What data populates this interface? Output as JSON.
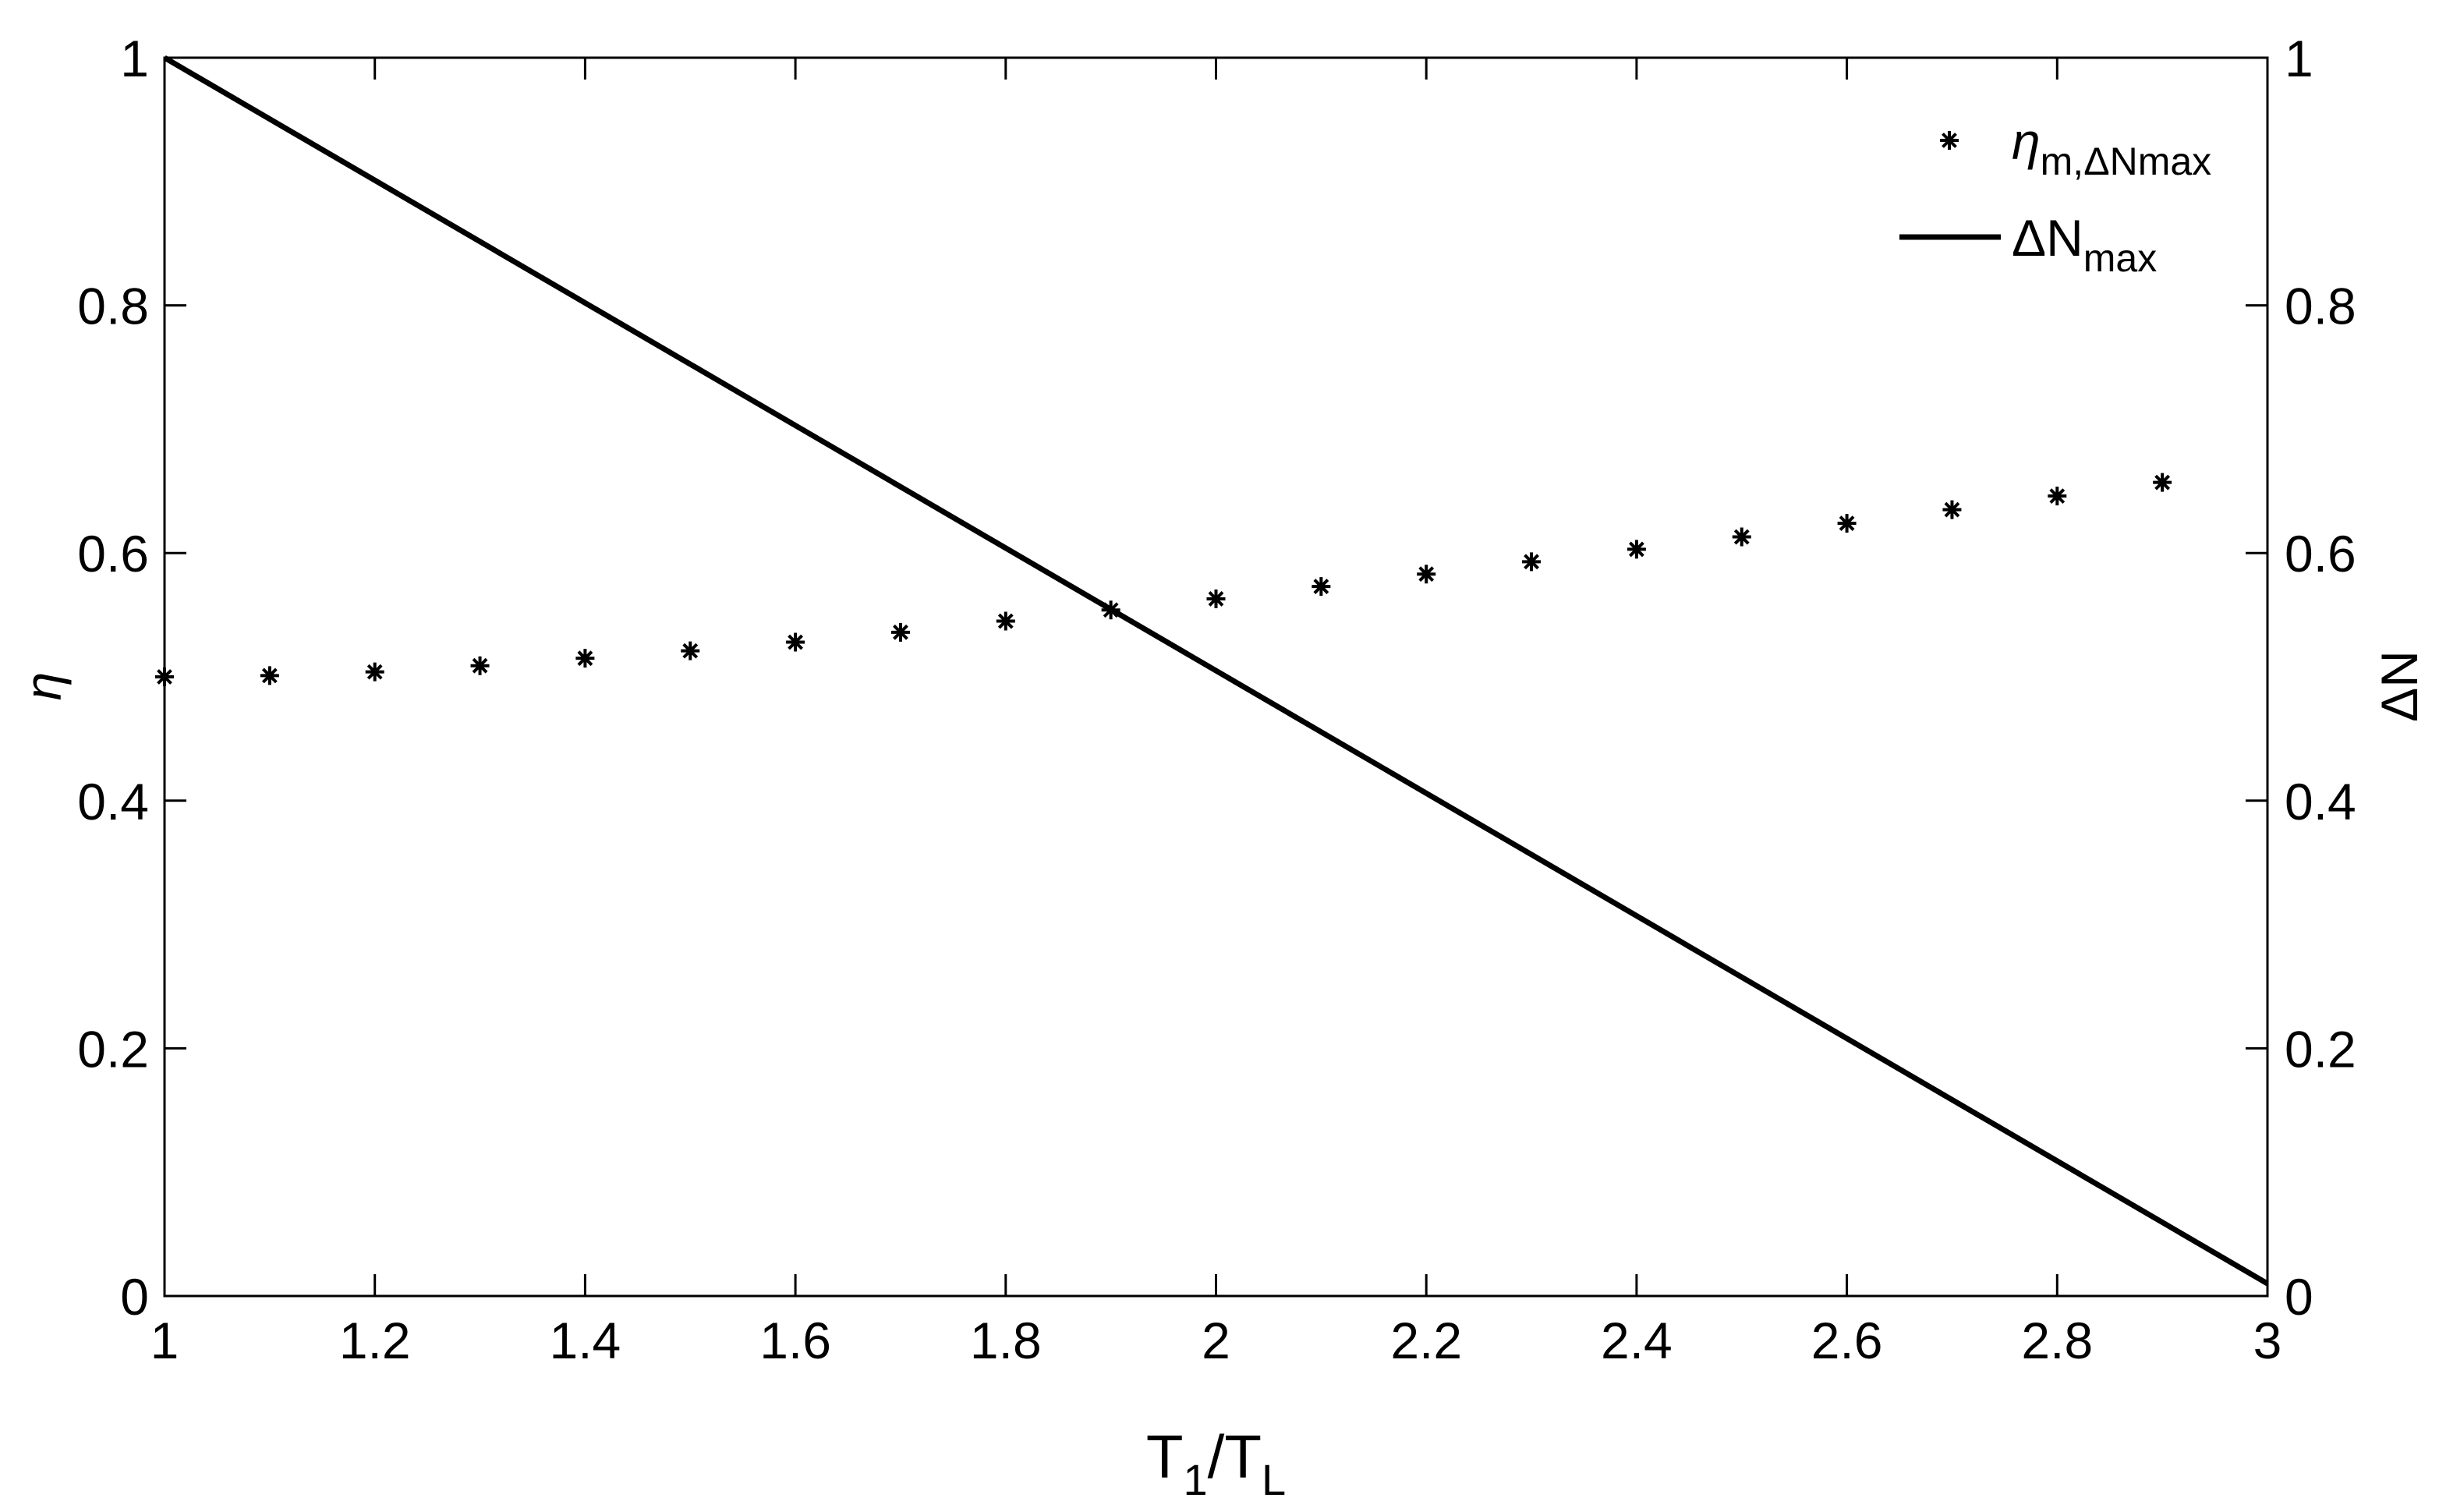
{
  "chart_data": {
    "type": "scatter-line",
    "x_label": [
      "T",
      "1",
      "/T",
      "L"
    ],
    "y_label": "η",
    "y2_label": "ΔN",
    "xlim": [
      1,
      3
    ],
    "xticks": [
      1,
      1.2,
      1.4,
      1.6,
      1.8,
      2,
      2.2,
      2.4,
      2.6,
      2.8,
      3
    ],
    "ylim": [
      0,
      1
    ],
    "yticks": [
      0,
      0.2,
      0.4,
      0.6,
      0.8,
      1
    ],
    "y2lim": [
      0,
      1
    ],
    "y2ticks": [
      0,
      0.2,
      0.4,
      0.6,
      0.8,
      1
    ],
    "series": [
      {
        "name": [
          "η",
          "m,ΔNmax"
        ],
        "color": "#000000",
        "marker": "asterisk",
        "axis": "y",
        "x": [
          1,
          1.1,
          1.2,
          1.3,
          1.4,
          1.5,
          1.6,
          1.7,
          1.8,
          1.9,
          2,
          2.1,
          2.2,
          2.3,
          2.4,
          2.5,
          2.6,
          2.7,
          2.8,
          2.9
        ],
        "values": [
          0.5,
          0.501,
          0.504,
          0.509,
          0.515,
          0.521,
          0.528,
          0.536,
          0.545,
          0.554,
          0.563,
          0.573,
          0.583,
          0.593,
          0.603,
          0.613,
          0.624,
          0.635,
          0.646,
          0.657
        ]
      },
      {
        "name": [
          "ΔN",
          "max"
        ],
        "color": "#000000",
        "marker": "line",
        "axis": "y2",
        "x": [
          1,
          3
        ],
        "values": [
          1,
          0.01
        ]
      }
    ]
  }
}
